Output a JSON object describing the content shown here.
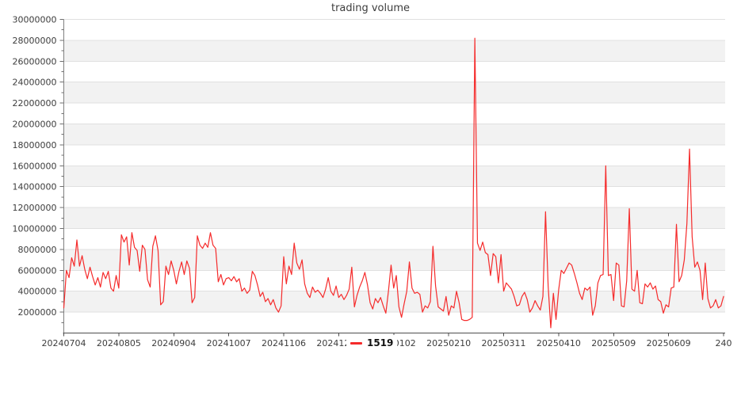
{
  "chart_data": {
    "type": "line",
    "title": "trading volume",
    "legend": {
      "series_label": "1519",
      "position": "bottom-center"
    },
    "colors": {
      "line": "#f52b2b",
      "band_fill": "#f2f2f2",
      "gridline": "#e0e0e0",
      "y_axis_line": "#808080",
      "x_axis_line": "#4d4d4d",
      "tick_mark": "#6e6e6e",
      "tick_text": "#3c3c3c",
      "title_text": "#3c3c3c",
      "legend_text": "#111111"
    },
    "x_axis": {
      "tick_labels": [
        "20240704",
        "20240805",
        "20240904",
        "20241007",
        "20241106",
        "20241206",
        "20250102",
        "20250210",
        "20250311",
        "20250410",
        "20250509",
        "20250609",
        "240"
      ]
    },
    "y_axis": {
      "min": 0,
      "max": 30000000,
      "tick_step": 2000000,
      "minor_tick_step": 1000000,
      "tick_labels": [
        "2000000",
        "4000000",
        "6000000",
        "8000000",
        "10000000",
        "12000000",
        "14000000",
        "16000000",
        "18000000",
        "20000000",
        "22000000",
        "24000000",
        "26000000",
        "28000000",
        "30000000"
      ],
      "banded_background": true,
      "gray_band_ranges_millions": [
        [
          2,
          4
        ],
        [
          6,
          8
        ],
        [
          10,
          12
        ],
        [
          14,
          16
        ],
        [
          18,
          20
        ],
        [
          22,
          24
        ],
        [
          26,
          28
        ]
      ]
    },
    "value_scale": 1000000,
    "series": [
      {
        "name": "1519",
        "color": "#f52b2b",
        "values_millions": [
          2.4,
          6.0,
          5.3,
          7.2,
          6.4,
          8.9,
          6.4,
          7.4,
          6.1,
          5.2,
          6.3,
          5.4,
          4.6,
          5.3,
          4.4,
          5.8,
          5.2,
          5.9,
          4.3,
          4.0,
          5.5,
          4.3,
          9.4,
          8.7,
          9.2,
          6.5,
          9.6,
          8.2,
          7.9,
          5.9,
          8.4,
          8.0,
          5.1,
          4.4,
          8.3,
          9.3,
          7.9,
          2.7,
          3.0,
          6.4,
          5.6,
          6.9,
          6.0,
          4.7,
          5.9,
          6.8,
          5.6,
          6.9,
          6.2,
          2.9,
          3.4,
          9.3,
          8.4,
          8.1,
          8.6,
          8.2,
          9.6,
          8.4,
          8.1,
          4.9,
          5.6,
          4.6,
          5.2,
          5.3,
          5.0,
          5.4,
          4.9,
          5.2,
          4.0,
          4.3,
          3.8,
          4.1,
          5.9,
          5.5,
          4.6,
          3.5,
          3.9,
          3.0,
          3.3,
          2.7,
          3.2,
          2.4,
          2.0,
          2.6,
          7.3,
          4.7,
          6.4,
          5.6,
          8.6,
          6.7,
          6.1,
          7.0,
          4.7,
          3.8,
          3.4,
          4.4,
          3.9,
          4.1,
          3.8,
          3.4,
          4.2,
          5.3,
          4.0,
          3.6,
          4.5,
          3.4,
          3.7,
          3.2,
          3.6,
          4.2,
          6.3,
          2.5,
          3.6,
          4.4,
          5.0,
          5.8,
          4.6,
          2.9,
          2.3,
          3.3,
          2.9,
          3.4,
          2.6,
          1.9,
          4.0,
          6.5,
          4.3,
          5.5,
          2.5,
          1.5,
          2.8,
          4.0,
          6.8,
          4.3,
          3.8,
          3.9,
          3.7,
          2.0,
          2.6,
          2.4,
          3.0,
          8.3,
          4.5,
          2.5,
          2.3,
          2.1,
          3.5,
          1.7,
          2.6,
          2.4,
          4.0,
          2.9,
          1.3,
          1.2,
          1.2,
          1.3,
          1.5,
          28.2,
          8.6,
          7.9,
          8.7,
          7.7,
          7.5,
          5.5,
          7.6,
          7.3,
          4.8,
          7.5,
          4.0,
          4.8,
          4.5,
          4.2,
          3.5,
          2.6,
          2.7,
          3.5,
          3.9,
          3.2,
          2.0,
          2.4,
          3.1,
          2.6,
          2.2,
          3.5,
          11.6,
          4.5,
          0.5,
          3.8,
          1.3,
          4.1,
          6.0,
          5.7,
          6.2,
          6.7,
          6.5,
          5.7,
          4.8,
          3.8,
          3.2,
          4.3,
          4.1,
          4.4,
          1.7,
          2.6,
          4.8,
          5.5,
          5.6,
          16.0,
          5.5,
          5.6,
          3.1,
          6.7,
          6.5,
          2.6,
          2.5,
          5.0,
          11.9,
          4.2,
          4.0,
          6.0,
          2.9,
          2.8,
          4.7,
          4.4,
          4.8,
          4.2,
          4.5,
          3.2,
          3.0,
          1.9,
          2.7,
          2.5,
          4.3,
          4.4,
          10.4,
          4.9,
          5.5,
          7.0,
          10.5,
          17.6,
          9.2,
          6.3,
          6.8,
          6.0,
          3.2,
          6.7,
          3.3,
          2.4,
          2.6,
          3.2,
          2.4,
          2.6,
          3.5
        ]
      }
    ]
  }
}
